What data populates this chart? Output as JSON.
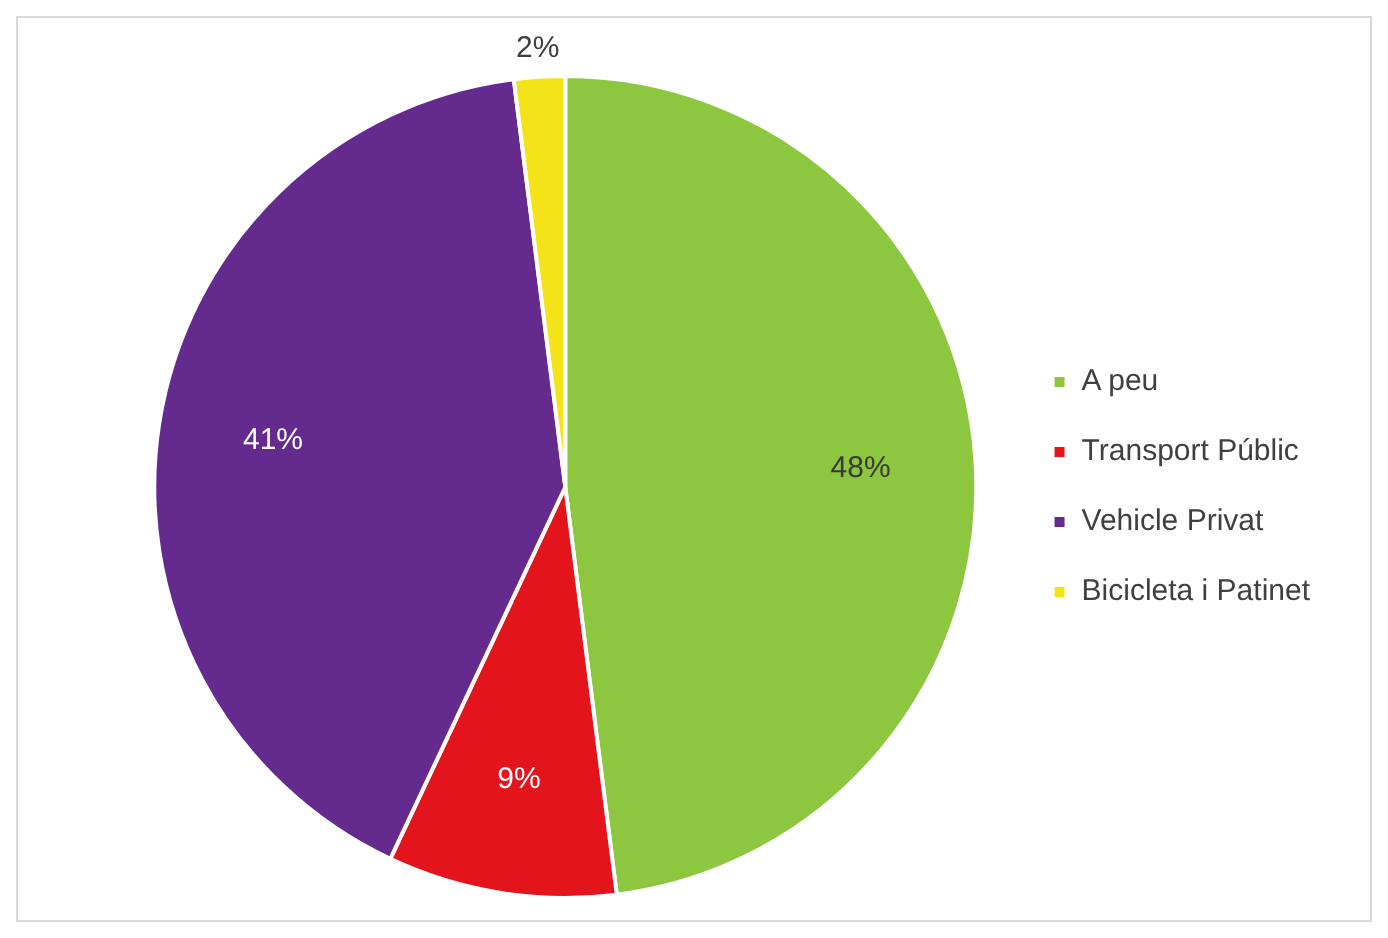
{
  "chart_data": {
    "type": "pie",
    "categories": [
      "A peu",
      "Transport Públic",
      "Vehicle Privat",
      "Bicicleta i Patinet"
    ],
    "values": [
      48,
      9,
      41,
      2
    ],
    "colors": [
      "#8dc63f",
      "#e3141b",
      "#652a8e",
      "#f5e31a"
    ],
    "value_labels": [
      "48%",
      "9%",
      "41%",
      "2%"
    ],
    "legend": "right"
  }
}
